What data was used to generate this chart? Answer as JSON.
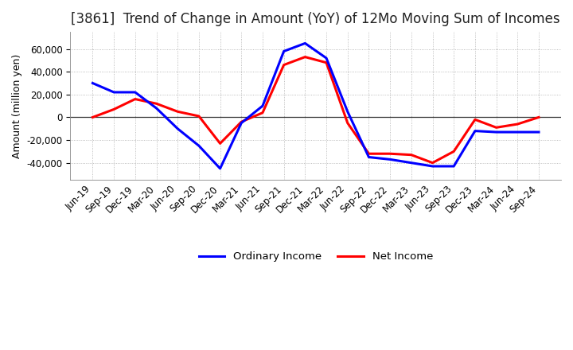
{
  "title": "[3861]  Trend of Change in Amount (YoY) of 12Mo Moving Sum of Incomes",
  "ylabel": "Amount (million yen)",
  "x_labels": [
    "Jun-19",
    "Sep-19",
    "Dec-19",
    "Mar-20",
    "Jun-20",
    "Sep-20",
    "Dec-20",
    "Mar-21",
    "Jun-21",
    "Sep-21",
    "Dec-21",
    "Mar-22",
    "Jun-22",
    "Sep-22",
    "Dec-22",
    "Mar-23",
    "Jun-23",
    "Sep-23",
    "Dec-23",
    "Mar-24",
    "Jun-24",
    "Sep-24"
  ],
  "ordinary_income": [
    30000,
    22000,
    22000,
    8000,
    -10000,
    -25000,
    -45000,
    -5000,
    10000,
    58000,
    65000,
    52000,
    5000,
    -35000,
    -37000,
    -40000,
    -43000,
    -43000,
    -12000,
    -13000,
    -13000,
    -13000
  ],
  "net_income": [
    0,
    7000,
    16000,
    12000,
    5000,
    1000,
    -23000,
    -4000,
    4000,
    46000,
    53000,
    48000,
    -5000,
    -32000,
    -32000,
    -33000,
    -40000,
    -30000,
    -2000,
    -9000,
    -6000,
    0
  ],
  "ordinary_income_color": "#0000FF",
  "net_income_color": "#FF0000",
  "ylim": [
    -55000,
    75000
  ],
  "yticks": [
    -40000,
    -20000,
    0,
    20000,
    40000,
    60000
  ],
  "background_color": "#FFFFFF",
  "plot_bg_color": "#FFFFFF",
  "grid_color": "#AAAAAA",
  "legend_labels": [
    "Ordinary Income",
    "Net Income"
  ],
  "line_width": 2.2,
  "title_fontsize": 12,
  "ylabel_fontsize": 9,
  "tick_fontsize": 8.5
}
